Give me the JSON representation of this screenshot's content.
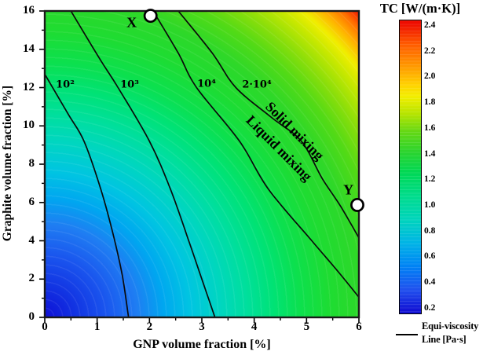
{
  "colorbar": {
    "title": "TC [W/(m·K)]",
    "ticks": [
      "2.4",
      "2.2",
      "2.0",
      "1.8",
      "1.6",
      "1.4",
      "1.2",
      "1.0",
      "0.8",
      "0.6",
      "0.4",
      "0.2"
    ]
  },
  "axes": {
    "x": {
      "title": "GNP volume fraction [%]",
      "ticks": [
        "0",
        "1",
        "2",
        "3",
        "4",
        "5",
        "6"
      ]
    },
    "y": {
      "title": "Graphite volume fraction [%]",
      "ticks": [
        "0",
        "2",
        "4",
        "6",
        "8",
        "10",
        "12",
        "14",
        "16"
      ]
    }
  },
  "legend": {
    "line1": "Equi-viscosity",
    "line2": "Line [Pa·s]"
  },
  "chart_data": {
    "type": "heatmap",
    "subtype": "filled-contour-with-isolines",
    "xlabel": "GNP volume fraction [%]",
    "ylabel": "Graphite volume fraction [%]",
    "xlim": [
      0,
      6
    ],
    "ylim": [
      0,
      16
    ],
    "x_ticks": [
      0,
      1,
      2,
      3,
      4,
      5,
      6
    ],
    "y_ticks": [
      0,
      2,
      4,
      6,
      8,
      10,
      12,
      14,
      16
    ],
    "colorbar": {
      "label": "TC [W/(m·K)]",
      "range": [
        0.2,
        2.4
      ],
      "ticks": [
        2.4,
        2.2,
        2.0,
        1.8,
        1.6,
        1.4,
        1.2,
        1.0,
        0.8,
        0.6,
        0.4,
        0.2
      ],
      "colormap": "rainbow: blue(0.2) → cyan(0.8) → green(1.4) → yellow(1.9) → orange(2.1) → red(2.4)"
    },
    "field_description": "Thermal conductivity TC rises from ~0.2 W/(m·K) at (GNP=0, Graphite=0) to ~2.4 W/(m·K) at (GNP=6, Graphite=16); iso-TC bands fan out from the lower-left corner.",
    "contour_lines": [
      {
        "label": "10²",
        "viscosity_pa_s": 100,
        "points": [
          [
            0,
            12.7
          ],
          [
            0.45,
            10.6
          ],
          [
            0.75,
            9.2
          ],
          [
            1.07,
            6.7
          ],
          [
            1.3,
            4.4
          ],
          [
            1.48,
            2.2
          ],
          [
            1.6,
            0
          ]
        ],
        "label_at": [
          0.39,
          12.15
        ]
      },
      {
        "label": "10³",
        "viscosity_pa_s": 1000,
        "points": [
          [
            0.5,
            16
          ],
          [
            1.05,
            13.5
          ],
          [
            1.4,
            12
          ],
          [
            2.0,
            9.2
          ],
          [
            2.4,
            6.7
          ],
          [
            2.75,
            4.0
          ],
          [
            3.0,
            2.0
          ],
          [
            3.25,
            0
          ]
        ],
        "label_at": [
          1.62,
          12.15
        ]
      },
      {
        "label": "10⁴",
        "viscosity_pa_s": 10000,
        "points": [
          [
            2.07,
            16
          ],
          [
            2.55,
            13.8
          ],
          [
            2.9,
            12
          ],
          [
            3.72,
            9.2
          ],
          [
            4.27,
            6.7
          ],
          [
            5.1,
            4.0
          ],
          [
            5.6,
            2.4
          ],
          [
            6,
            1.05
          ]
        ],
        "label_at": [
          3.09,
          12.18
        ]
      },
      {
        "label": "2·10⁴",
        "viscosity_pa_s": 20000,
        "points": [
          [
            2.55,
            16
          ],
          [
            3.2,
            13.8
          ],
          [
            3.65,
            12
          ],
          [
            4.35,
            10.4
          ],
          [
            4.9,
            9.2
          ],
          [
            5.3,
            7.25
          ],
          [
            5.65,
            5.8
          ],
          [
            6,
            4.15
          ]
        ],
        "label_at": [
          4.05,
          12.15
        ]
      }
    ],
    "region_labels": [
      {
        "text": "Solid mixing",
        "at": [
          4.77,
          9.72
        ],
        "angle": 45
      },
      {
        "text": "Liquid mixing",
        "at": [
          4.47,
          8.82
        ],
        "angle": 45
      }
    ],
    "markers": [
      {
        "label": "X",
        "point": [
          2.02,
          15.75
        ],
        "label_at": [
          1.66,
          15.38
        ]
      },
      {
        "label": "Y",
        "point": [
          5.97,
          5.87
        ],
        "label_at": [
          5.8,
          6.64
        ]
      }
    ],
    "legend": "Equi-viscosity Line [Pa·s]"
  }
}
